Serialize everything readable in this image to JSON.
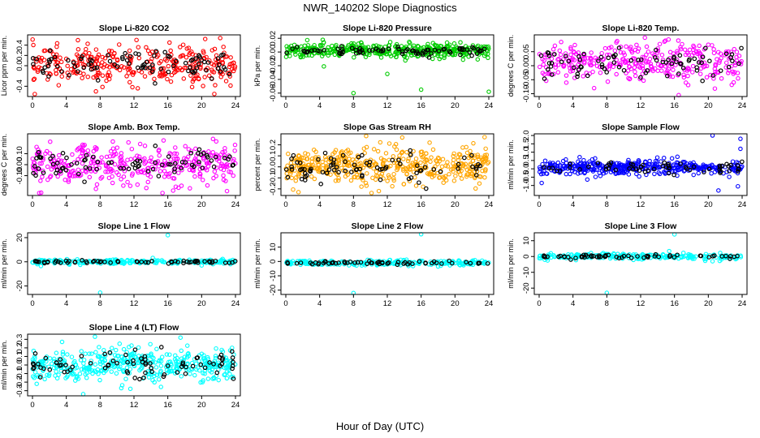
{
  "figure": {
    "title": "NWR_140202  Slope Diagnostics",
    "xlabel": "Hour of Day (UTC)"
  },
  "colors": {
    "red": "#ff0000",
    "green": "#00cc00",
    "magenta": "#ff00ff",
    "orange": "#ffa500",
    "blue": "#0000ff",
    "cyan": "#00ffff",
    "black": "#000000"
  },
  "chart_data": [
    {
      "type": "scatter",
      "title": "Slope Li-820 CO2",
      "ylabel": "Licor ppm per min.",
      "xlim": [
        0,
        24
      ],
      "ylim": [
        -0.6,
        0.6
      ],
      "xticks": [
        0,
        4,
        8,
        12,
        16,
        20,
        24
      ],
      "yticks": [
        -0.4,
        0.0,
        0.2,
        0.4
      ],
      "yticklabels": [
        "-0.4",
        "0.0",
        "0.2",
        "0.4"
      ],
      "color": "red",
      "spread": 0.18,
      "center": 0.02,
      "count": 320,
      "black_count": 90,
      "outliers": [
        [
          7.5,
          -0.5
        ],
        [
          21.5,
          -0.55
        ],
        [
          12.3,
          0.5
        ],
        [
          3.1,
          -0.38
        ],
        [
          16.2,
          0.45
        ]
      ]
    },
    {
      "type": "scatter",
      "title": "Slope Li-820 Pressure",
      "ylabel": "kPa per min.",
      "xlim": [
        0,
        24
      ],
      "ylim": [
        -0.065,
        0.025
      ],
      "xticks": [
        0,
        4,
        8,
        12,
        16,
        20,
        24
      ],
      "yticks": [
        -0.06,
        -0.04,
        -0.02,
        0.0,
        0.02
      ],
      "yticklabels": [
        "-0.06",
        "-0.04",
        "-0.02",
        "0.00",
        "0.02"
      ],
      "color": "green",
      "spread": 0.005,
      "center": 0.002,
      "count": 420,
      "black_count": 80,
      "outliers": [
        [
          8.0,
          -0.06
        ],
        [
          16.0,
          -0.055
        ],
        [
          24.0,
          -0.058
        ],
        [
          12.0,
          -0.032
        ],
        [
          4.5,
          -0.021
        ]
      ]
    },
    {
      "type": "scatter",
      "title": "Slope Li-820 Temp.",
      "ylabel": "degrees C per min.",
      "xlim": [
        0,
        24
      ],
      "ylim": [
        -0.11,
        0.11
      ],
      "xticks": [
        0,
        4,
        8,
        12,
        16,
        20,
        24
      ],
      "yticks": [
        -0.1,
        -0.05,
        0.0,
        0.05
      ],
      "yticklabels": [
        "-0.10",
        "-0.05",
        "0.00",
        "0.05"
      ],
      "color": "magenta",
      "spread": 0.035,
      "center": 0.01,
      "count": 320,
      "black_count": 80,
      "outliers": [
        [
          16.5,
          -0.105
        ],
        [
          12.5,
          0.1
        ],
        [
          6.5,
          -0.08
        ],
        [
          20.0,
          0.075
        ]
      ]
    },
    {
      "type": "scatter",
      "title": "Slope Amb. Box Temp.",
      "ylabel": "degrees C per min.",
      "xlim": [
        0,
        24
      ],
      "ylim": [
        -0.28,
        0.28
      ],
      "xticks": [
        0,
        4,
        8,
        12,
        16,
        20,
        24
      ],
      "yticks": [
        -0.1,
        0.0,
        0.1
      ],
      "yticklabels": [
        "-0.10",
        "0.00",
        "0.10"
      ],
      "color": "magenta",
      "spread": 0.09,
      "center": 0.0,
      "count": 340,
      "black_count": 80,
      "outliers": [
        [
          7.5,
          -0.22
        ],
        [
          23.0,
          -0.24
        ],
        [
          15.5,
          0.22
        ],
        [
          9.5,
          0.21
        ]
      ]
    },
    {
      "type": "scatter",
      "title": "Slope Gas Stream RH",
      "ylabel": "percent per min.",
      "xlim": [
        0,
        24
      ],
      "ylim": [
        -0.26,
        0.3
      ],
      "xticks": [
        0,
        4,
        8,
        12,
        16,
        20,
        24
      ],
      "yticks": [
        -0.2,
        -0.1,
        0.0,
        0.1,
        0.2
      ],
      "yticklabels": [
        "-0.2",
        "-0.1",
        "0.0",
        "0.1",
        "0.2"
      ],
      "color": "orange",
      "spread": 0.085,
      "center": 0.0,
      "count": 440,
      "black_count": 80,
      "outliers": [
        [
          9.5,
          0.28
        ],
        [
          1.5,
          -0.23
        ],
        [
          11.0,
          -0.22
        ],
        [
          23.5,
          0.27
        ],
        [
          17.0,
          0.22
        ]
      ]
    },
    {
      "type": "scatter",
      "title": "Slope Sample Flow",
      "ylabel": "ml/min per min.",
      "xlim": [
        0,
        24
      ],
      "ylim": [
        -1.6,
        2.1
      ],
      "xticks": [
        0,
        4,
        8,
        12,
        16,
        20,
        24
      ],
      "yticks": [
        -1.0,
        -0.5,
        0.0,
        0.5,
        1.0,
        1.5,
        2.0
      ],
      "yticklabels": [
        "-1.0",
        "-0.5",
        "0.0",
        "0.5",
        "1.0",
        "1.5",
        "2.0"
      ],
      "color": "blue",
      "spread": 0.22,
      "center": 0.1,
      "count": 380,
      "black_count": 60,
      "outliers": [
        [
          20.5,
          2.0
        ],
        [
          23.8,
          1.8
        ],
        [
          23.8,
          1.2
        ],
        [
          21.2,
          -1.3
        ],
        [
          23.5,
          -1.05
        ],
        [
          0.3,
          -0.85
        ]
      ]
    },
    {
      "type": "scatter",
      "title": "Slope Line 1 Flow",
      "ylabel": "ml/min per min.",
      "xlim": [
        0,
        24
      ],
      "ylim": [
        -27,
        24
      ],
      "xticks": [
        0,
        4,
        8,
        12,
        16,
        20,
        24
      ],
      "yticks": [
        -20,
        0,
        20
      ],
      "yticklabels": [
        "-20",
        "0",
        "20"
      ],
      "color": "cyan",
      "spread": 0.9,
      "center": 0.0,
      "count": 240,
      "black_count": 60,
      "outliers": [
        [
          16.0,
          22.0
        ],
        [
          8.0,
          -25.5
        ],
        [
          1.0,
          -3.5
        ],
        [
          20.0,
          -3.0
        ]
      ]
    },
    {
      "type": "scatter",
      "title": "Slope Line 2 Flow",
      "ylabel": "ml/min per min.",
      "xlim": [
        0,
        24
      ],
      "ylim": [
        -23,
        20
      ],
      "xticks": [
        0,
        4,
        8,
        12,
        16,
        20,
        24
      ],
      "yticks": [
        -20,
        -10,
        0,
        10
      ],
      "yticklabels": [
        "-20",
        "-10",
        "0",
        "10"
      ],
      "color": "cyan",
      "spread": 0.9,
      "center": -1.0,
      "count": 240,
      "black_count": 60,
      "outliers": [
        [
          16.0,
          19.0
        ],
        [
          8.0,
          -22.0
        ],
        [
          18.0,
          -3.5
        ],
        [
          0.2,
          -1.5
        ]
      ]
    },
    {
      "type": "scatter",
      "title": "Slope Line 3 Flow",
      "ylabel": "ml/min per min.",
      "xlim": [
        0,
        24
      ],
      "ylim": [
        -24,
        15
      ],
      "xticks": [
        0,
        4,
        8,
        12,
        16,
        20,
        24
      ],
      "yticks": [
        -20,
        -10,
        0,
        10
      ],
      "yticklabels": [
        "-20",
        "-10",
        "0",
        "10"
      ],
      "color": "cyan",
      "spread": 0.9,
      "center": 0.0,
      "count": 240,
      "black_count": 60,
      "outliers": [
        [
          16.0,
          14.0
        ],
        [
          8.0,
          -23.0
        ],
        [
          1.0,
          -2.5
        ],
        [
          20.5,
          -3.0
        ]
      ]
    },
    {
      "type": "scatter",
      "title": "Slope Line 4 (LT) Flow",
      "ylabel": "ml/min per min.",
      "xlim": [
        0,
        24
      ],
      "ylim": [
        -0.36,
        0.36
      ],
      "xticks": [
        0,
        4,
        8,
        12,
        16,
        20,
        24
      ],
      "yticks": [
        -0.3,
        -0.2,
        -0.1,
        0.0,
        0.1,
        0.2,
        0.3
      ],
      "yticklabels": [
        "-0.3",
        "-0.2",
        "-0.1",
        "0.0",
        "0.1",
        "0.2",
        "0.3"
      ],
      "color": "cyan",
      "spread": 0.1,
      "center": 0.0,
      "count": 420,
      "black_count": 80,
      "outliers": [
        [
          6.0,
          -0.34
        ],
        [
          17.5,
          0.32
        ],
        [
          3.5,
          0.27
        ],
        [
          10.5,
          -0.27
        ],
        [
          0.5,
          -0.22
        ]
      ]
    }
  ]
}
